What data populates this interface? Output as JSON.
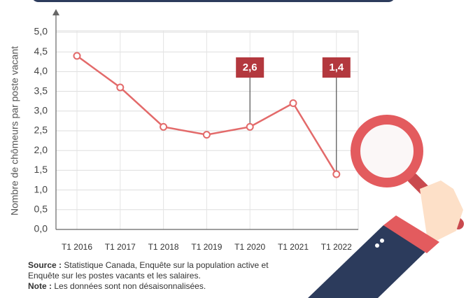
{
  "chart_data": {
    "type": "line",
    "ylabel": "Nombre de chômeurs par poste vacant",
    "categories": [
      "T1 2016",
      "T1 2017",
      "T1 2018",
      "T1 2019",
      "T1 2020",
      "T1 2021",
      "T1 2022"
    ],
    "values": [
      4.4,
      3.6,
      2.6,
      2.4,
      2.6,
      3.2,
      1.4
    ],
    "value_labels": [
      null,
      null,
      null,
      null,
      "2,6",
      null,
      "1,4"
    ],
    "color": "#e36a6a",
    "ylim": [
      0,
      5
    ],
    "yticks": [
      {
        "value": 0,
        "label": "0,0"
      },
      {
        "value": 0.5,
        "label": "0,5"
      },
      {
        "value": 1,
        "label": "1,0"
      },
      {
        "value": 1.5,
        "label": "1,5"
      },
      {
        "value": 2,
        "label": "2,0"
      },
      {
        "value": 2.5,
        "label": "2,5"
      },
      {
        "value": 3,
        "label": "3,0"
      },
      {
        "value": 3.5,
        "label": "3,5"
      },
      {
        "value": 4,
        "label": "4,0"
      },
      {
        "value": 4.5,
        "label": "4,5"
      },
      {
        "value": 5,
        "label": "5,0"
      }
    ],
    "grid": true,
    "source_label": "Source :",
    "source_text": "Statistique Canada, Enquête sur la population active et Enquête sur les postes vacants et les salaires.",
    "note_label": "Note :",
    "note_text": "Les données sont non désaisonnalisées."
  }
}
